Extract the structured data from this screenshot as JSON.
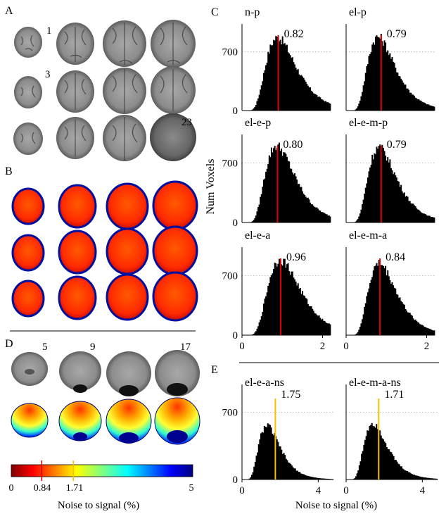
{
  "panels": {
    "a_label": "A",
    "b_label": "B",
    "c_label": "C",
    "d_label": "D",
    "e_label": "E"
  },
  "panel_a": {
    "numbers": [
      "1",
      "3",
      "23"
    ]
  },
  "panel_d": {
    "numbers": [
      "5",
      "9",
      "17"
    ]
  },
  "colorbar": {
    "tick_labels": [
      "0",
      "0.84",
      "1.71",
      "5"
    ],
    "min": 0,
    "max": 5,
    "markers": [
      {
        "value": 0.84,
        "color": "#e00000"
      },
      {
        "value": 1.71,
        "color": "#f4c000"
      }
    ],
    "label": "Noise to signal (%)",
    "colormap": "jet"
  },
  "y_axis_label": "Num Voxels",
  "colors": {
    "bar": "#000000",
    "median_red": "#e00000",
    "median_yellow": "#f4c000",
    "grid": "#b0b0b0"
  },
  "chart_data": [
    {
      "type": "bar",
      "title": "n-p",
      "median": 0.82,
      "median_label": "0.82",
      "marker_color": "#e00000",
      "peak_x": 0.8,
      "peak_y": 870,
      "xlim": [
        0,
        2
      ],
      "ylim": [
        0,
        1000
      ],
      "yticks": [
        0,
        700
      ],
      "ytick_labels": [
        "0",
        "700"
      ],
      "xticks": [],
      "xtick_labels": []
    },
    {
      "type": "bar",
      "title": "el-p",
      "median": 0.79,
      "median_label": "0.79",
      "marker_color": "#e00000",
      "peak_x": 0.72,
      "peak_y": 880,
      "xlim": [
        0,
        2
      ],
      "ylim": [
        0,
        1000
      ],
      "yticks": [],
      "ytick_labels": [],
      "xticks": [],
      "xtick_labels": []
    },
    {
      "type": "bar",
      "title": "el-e-p",
      "median": 0.8,
      "median_label": "0.80",
      "marker_color": "#e00000",
      "peak_x": 0.78,
      "peak_y": 900,
      "xlim": [
        0,
        2
      ],
      "ylim": [
        0,
        1000
      ],
      "yticks": [
        0,
        700
      ],
      "ytick_labels": [
        "0",
        "700"
      ],
      "xticks": [],
      "xtick_labels": []
    },
    {
      "type": "bar",
      "title": "el-e-m-p",
      "median": 0.79,
      "median_label": "0.79",
      "marker_color": "#e00000",
      "peak_x": 0.74,
      "peak_y": 880,
      "xlim": [
        0,
        2
      ],
      "ylim": [
        0,
        1000
      ],
      "yticks": [],
      "ytick_labels": [],
      "xticks": [],
      "xtick_labels": []
    },
    {
      "type": "bar",
      "title": "el-e-a",
      "median": 0.96,
      "median_label": "0.96",
      "marker_color": "#e00000",
      "peak_x": 0.95,
      "peak_y": 880,
      "xlim": [
        0,
        2.2
      ],
      "ylim": [
        0,
        1000
      ],
      "yticks": [
        0,
        700
      ],
      "ytick_labels": [
        "0",
        "700"
      ],
      "xticks": [
        0,
        2
      ],
      "xtick_labels": [
        "0",
        "2"
      ]
    },
    {
      "type": "bar",
      "title": "el-e-m-a",
      "median": 0.84,
      "median_label": "0.84",
      "marker_color": "#e00000",
      "peak_x": 0.82,
      "peak_y": 840,
      "xlim": [
        0,
        2.2
      ],
      "ylim": [
        0,
        1000
      ],
      "yticks": [],
      "ytick_labels": [],
      "xticks": [
        0,
        2
      ],
      "xtick_labels": [
        "0",
        "2"
      ]
    },
    {
      "type": "bar",
      "title": "el-e-a-ns",
      "median": 1.75,
      "median_label": "1.75",
      "marker_color": "#f4c000",
      "peak_x": 1.3,
      "peak_y": 560,
      "xlim": [
        0,
        4.8
      ],
      "ylim": [
        0,
        960
      ],
      "yticks": [
        0,
        700
      ],
      "ytick_labels": [
        "0",
        "700"
      ],
      "xticks": [
        0,
        4
      ],
      "xtick_labels": [
        "0",
        "4"
      ],
      "xlabel": "Noise to signal (%)"
    },
    {
      "type": "bar",
      "title": "el-e-m-a-ns",
      "median": 1.71,
      "median_label": "1.71",
      "marker_color": "#f4c000",
      "peak_x": 1.4,
      "peak_y": 590,
      "xlim": [
        0,
        4.8
      ],
      "ylim": [
        0,
        960
      ],
      "yticks": [],
      "ytick_labels": [],
      "xticks": [
        0,
        4
      ],
      "xtick_labels": [
        "0",
        "4"
      ]
    }
  ]
}
